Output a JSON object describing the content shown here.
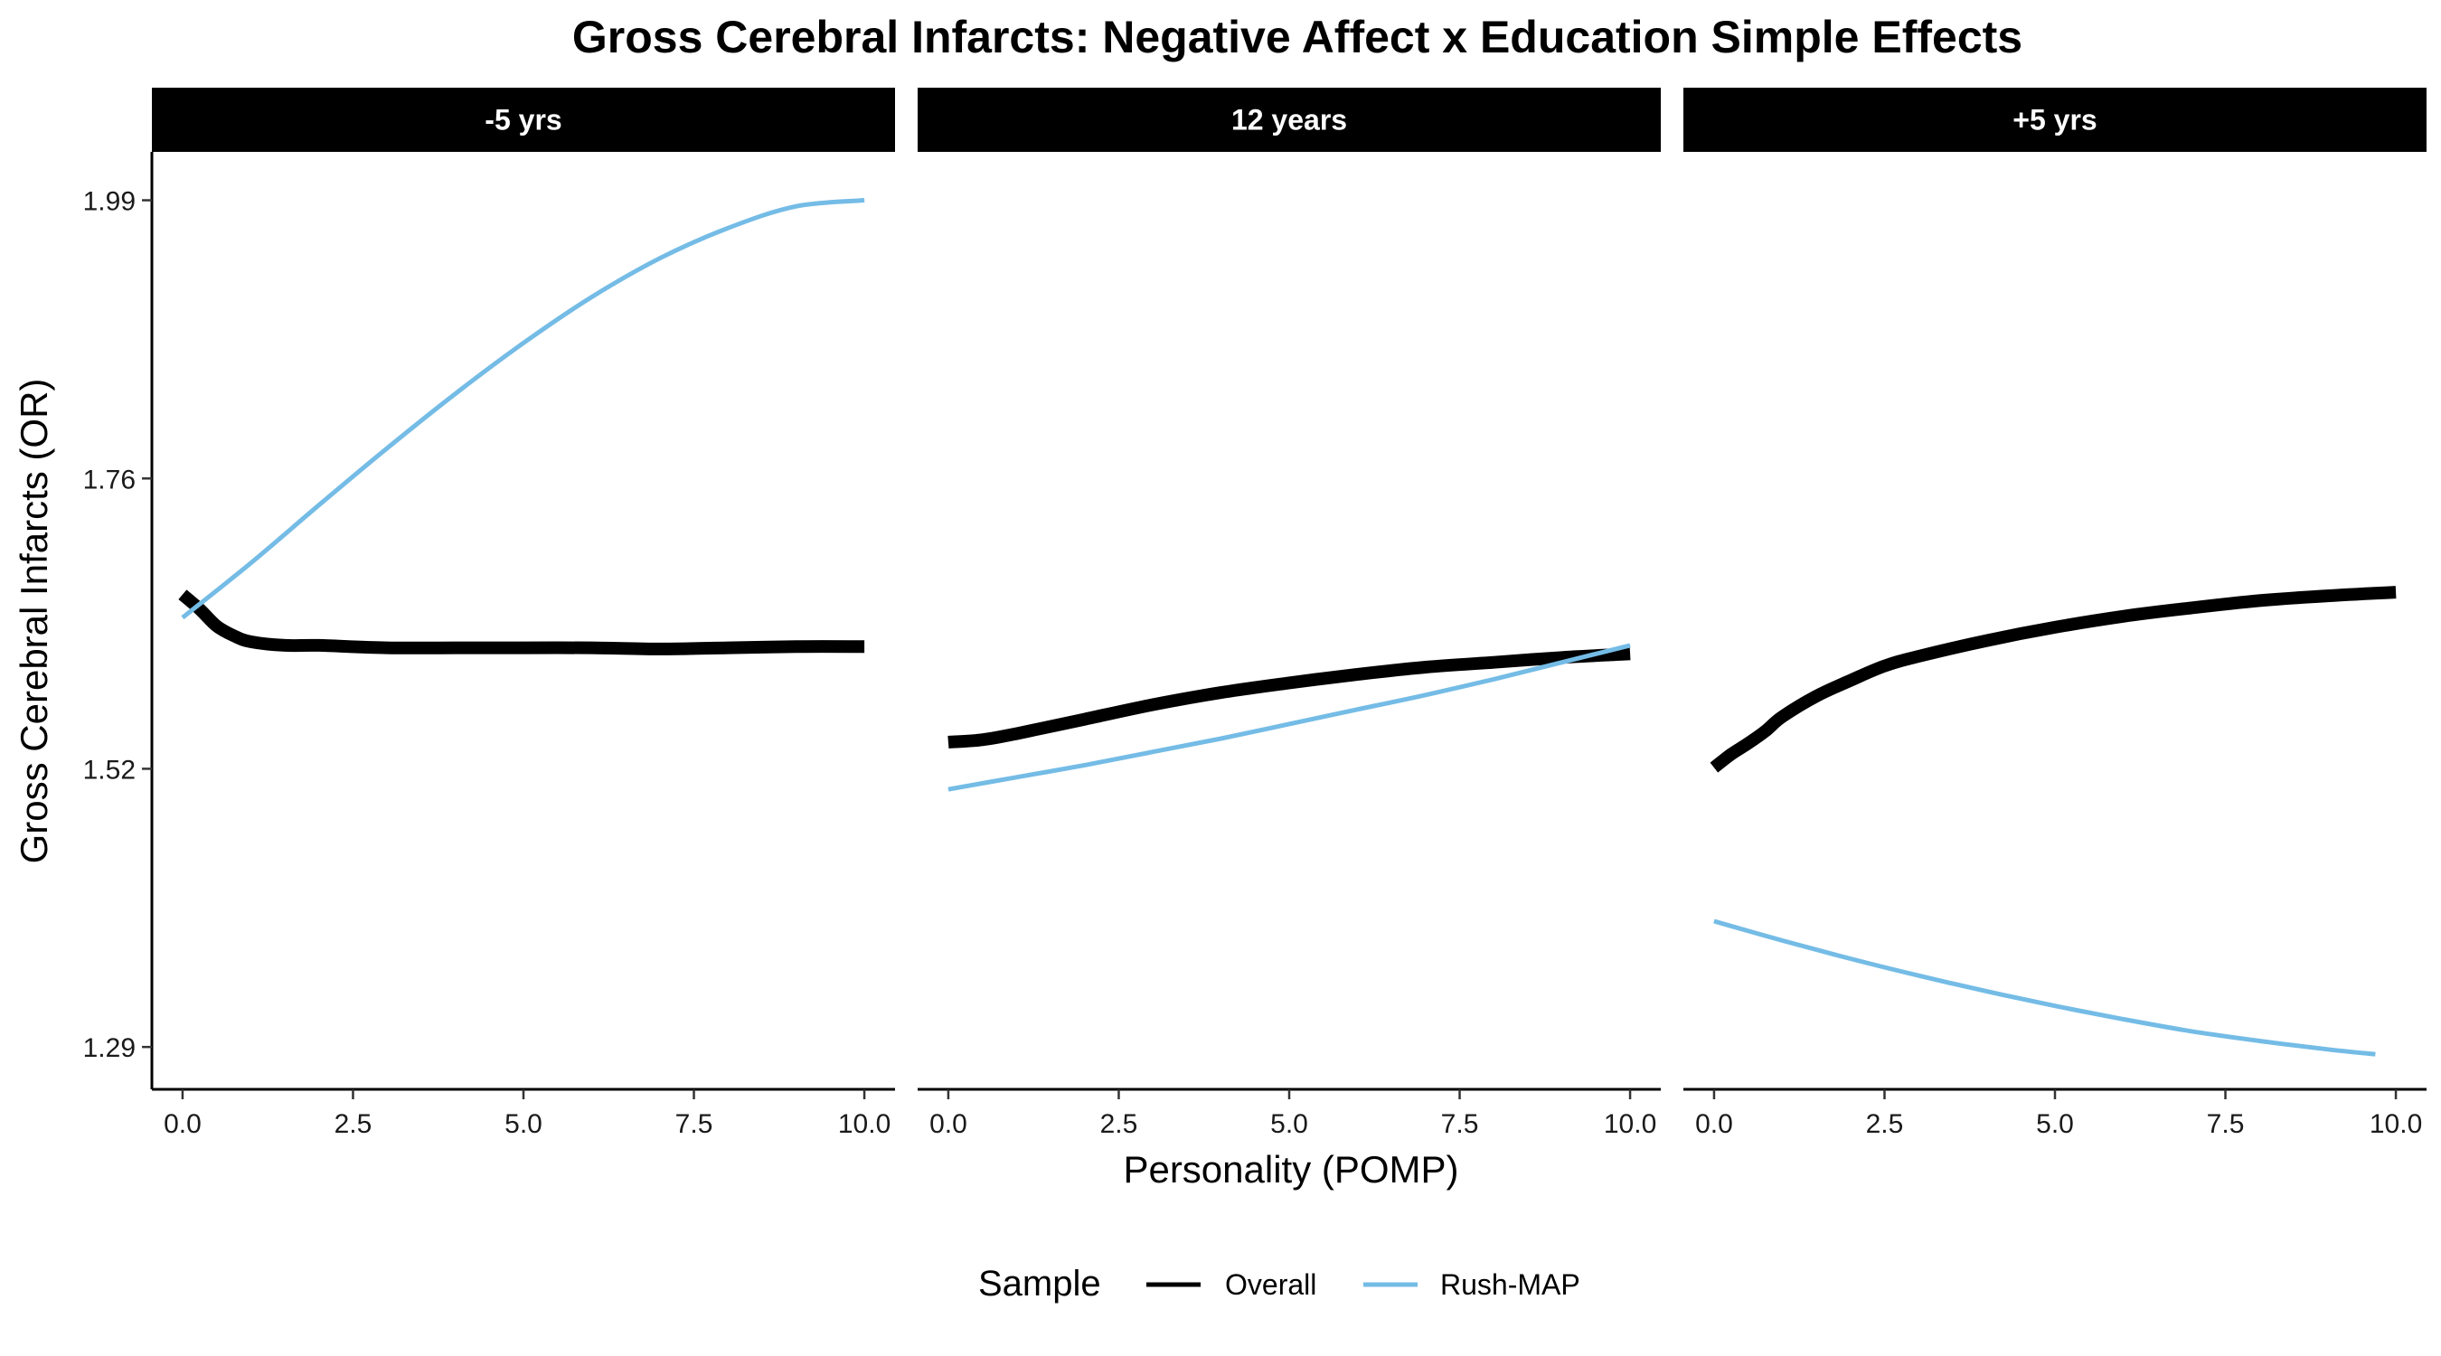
{
  "chart_data": {
    "type": "line",
    "title": "Gross Cerebral Infarcts: Negative Affect x Education Simple Effects",
    "xlabel": "Personality (POMP)",
    "ylabel": "Gross Cerebral Infarcts (OR)",
    "xlim": [
      -0.45,
      10.45
    ],
    "ylim": [
      1.255,
      2.03
    ],
    "x_ticks": [
      "0.0",
      "2.5",
      "5.0",
      "7.5",
      "10.0"
    ],
    "x_tick_values": [
      0,
      2.5,
      5,
      7.5,
      10
    ],
    "y_ticks": [
      "1.29",
      "1.52",
      "1.76",
      "1.99"
    ],
    "y_tick_values": [
      1.29,
      1.52,
      1.76,
      1.99
    ],
    "grid": false,
    "legend": {
      "title": "Sample",
      "position": "bottom",
      "entries": [
        "Overall",
        "Rush-MAP"
      ]
    },
    "series_styles": [
      {
        "name": "Overall",
        "color": "#000000",
        "linewidth": "thick"
      },
      {
        "name": "Rush-MAP",
        "color": "#74BCE6",
        "linewidth": "thin"
      }
    ],
    "panels": [
      {
        "label": "-5 yrs",
        "series": [
          {
            "name": "Overall",
            "x": [
              0,
              0.25,
              0.5,
              0.75,
              1,
              1.5,
              2,
              3,
              4,
              5,
              6,
              7,
              8,
              9,
              10
            ],
            "y": [
              1.664,
              1.652,
              1.638,
              1.63,
              1.625,
              1.622,
              1.622,
              1.62,
              1.62,
              1.62,
              1.62,
              1.619,
              1.62,
              1.621,
              1.621
            ]
          },
          {
            "name": "Rush-MAP",
            "x": [
              0,
              1,
              2,
              3,
              4,
              5,
              6,
              7,
              8,
              9,
              10
            ],
            "y": [
              1.645,
              1.69,
              1.738,
              1.785,
              1.83,
              1.872,
              1.91,
              1.942,
              1.967,
              1.985,
              1.99
            ]
          }
        ]
      },
      {
        "label": "12 years",
        "series": [
          {
            "name": "Overall",
            "x": [
              0,
              0.5,
              1,
              2,
              3,
              4,
              5,
              6,
              7,
              8,
              9,
              10
            ],
            "y": [
              1.542,
              1.544,
              1.549,
              1.561,
              1.573,
              1.583,
              1.591,
              1.598,
              1.604,
              1.608,
              1.612,
              1.615
            ]
          },
          {
            "name": "Rush-MAP",
            "x": [
              0,
              1,
              2,
              3,
              4,
              5,
              6,
              7,
              8,
              9,
              10
            ],
            "y": [
              1.503,
              1.513,
              1.523,
              1.534,
              1.545,
              1.557,
              1.569,
              1.581,
              1.594,
              1.608,
              1.622
            ]
          }
        ]
      },
      {
        "label": "+5 yrs",
        "series": [
          {
            "name": "Overall",
            "x": [
              0,
              0.25,
              0.5,
              0.75,
              1,
              1.5,
              2,
              2.5,
              3,
              4,
              5,
              6,
              7,
              8,
              9,
              10
            ],
            "y": [
              1.521,
              1.532,
              1.541,
              1.551,
              1.563,
              1.58,
              1.593,
              1.605,
              1.613,
              1.626,
              1.637,
              1.646,
              1.653,
              1.659,
              1.663,
              1.666
            ]
          },
          {
            "name": "Rush-MAP",
            "x": [
              0,
              1,
              2,
              3,
              4,
              5,
              6,
              7,
              8,
              9,
              9.7
            ],
            "y": [
              1.394,
              1.378,
              1.363,
              1.349,
              1.336,
              1.324,
              1.313,
              1.303,
              1.295,
              1.288,
              1.284
            ]
          }
        ]
      }
    ]
  }
}
